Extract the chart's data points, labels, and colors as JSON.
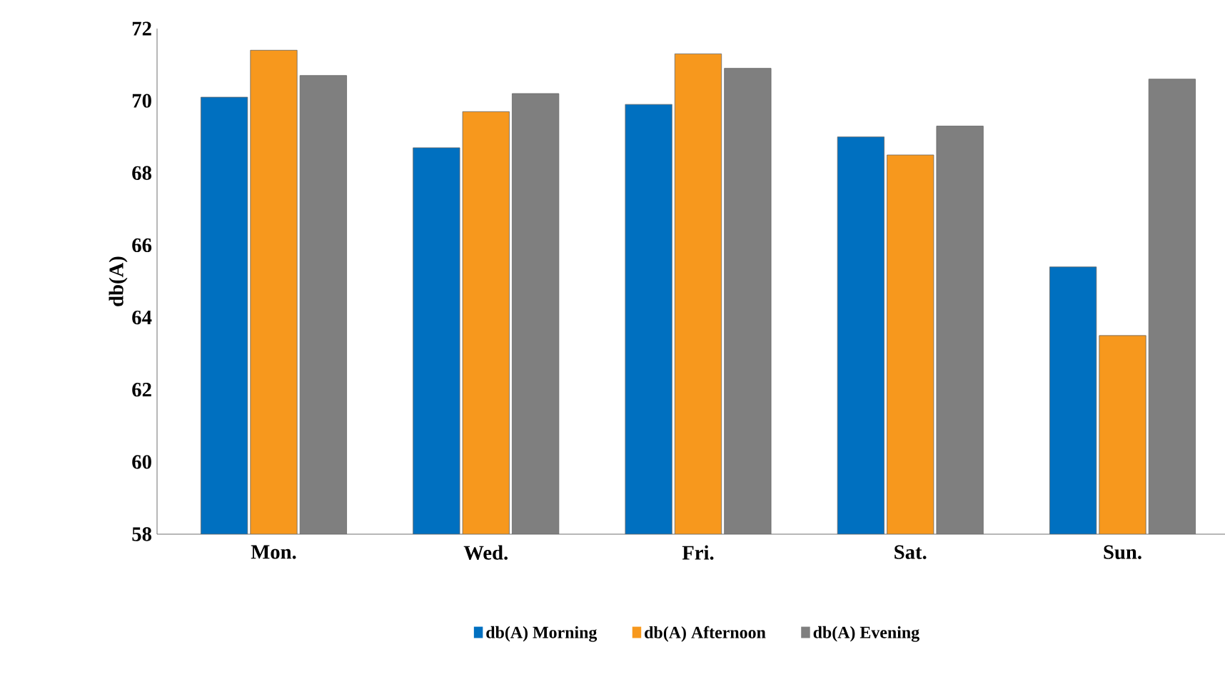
{
  "chart_data": {
    "type": "bar",
    "ylabel": "db(A)",
    "categories": [
      "Mon.",
      "Wed.",
      "Fri.",
      "Sat.",
      "Sun."
    ],
    "series": [
      {
        "name": "db(A) Morning",
        "color": "#0070c0",
        "values": [
          70.1,
          68.7,
          69.9,
          69.0,
          65.4
        ]
      },
      {
        "name": "db(A) Afternoon",
        "color": "#f7981d",
        "values": [
          71.4,
          69.7,
          71.3,
          68.5,
          63.5
        ]
      },
      {
        "name": "db(A) Evening",
        "color": "#7f7f7f",
        "values": [
          70.7,
          70.2,
          70.9,
          69.3,
          70.6
        ]
      }
    ],
    "ylim": [
      58,
      72
    ],
    "yticks": [
      58,
      60,
      62,
      64,
      66,
      68,
      70,
      72
    ],
    "grid": false,
    "legend": "bottom"
  }
}
